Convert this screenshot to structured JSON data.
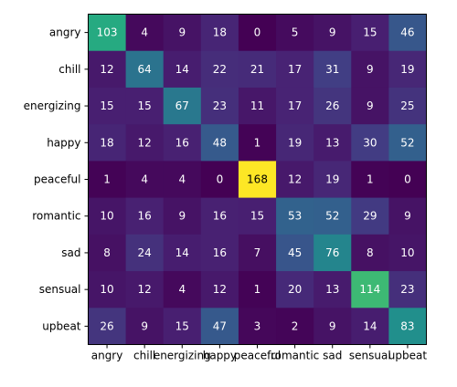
{
  "chart_data": {
    "type": "heatmap",
    "title": "",
    "xlabel": "",
    "ylabel": "",
    "x_categories": [
      "angry",
      "chill",
      "energizing",
      "happy",
      "peaceful",
      "romantic",
      "sad",
      "sensual",
      "upbeat"
    ],
    "y_categories": [
      "angry",
      "chill",
      "energizing",
      "happy",
      "peaceful",
      "romantic",
      "sad",
      "sensual",
      "upbeat"
    ],
    "values": [
      [
        103,
        4,
        9,
        18,
        0,
        5,
        9,
        15,
        46
      ],
      [
        12,
        64,
        14,
        22,
        21,
        17,
        31,
        9,
        19
      ],
      [
        15,
        15,
        67,
        23,
        11,
        17,
        26,
        9,
        25
      ],
      [
        18,
        12,
        16,
        48,
        1,
        19,
        13,
        30,
        52
      ],
      [
        1,
        4,
        4,
        0,
        168,
        12,
        19,
        1,
        0
      ],
      [
        10,
        16,
        9,
        16,
        15,
        53,
        52,
        29,
        9
      ],
      [
        8,
        24,
        14,
        16,
        7,
        45,
        76,
        8,
        10
      ],
      [
        10,
        12,
        4,
        12,
        1,
        20,
        13,
        114,
        23
      ],
      [
        26,
        9,
        15,
        47,
        3,
        2,
        9,
        14,
        83
      ]
    ],
    "value_range": [
      0,
      168
    ],
    "colormap": "viridis",
    "grid": false,
    "legend": "none"
  }
}
